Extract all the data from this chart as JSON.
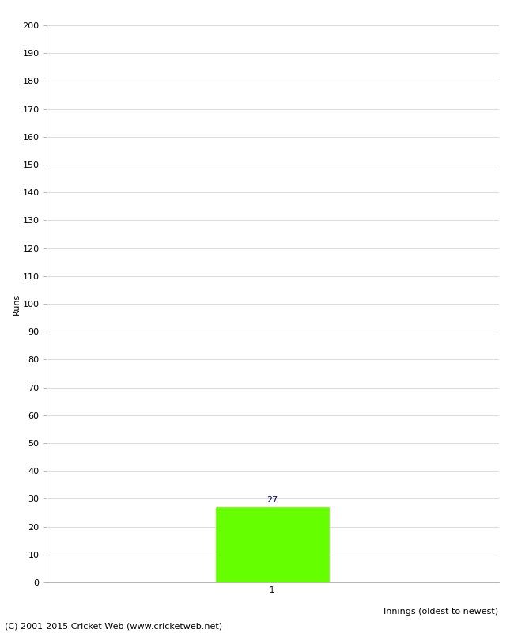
{
  "bar_values": [
    27
  ],
  "bar_positions": [
    1
  ],
  "bar_color": "#66ff00",
  "bar_edge_color": "#66ff00",
  "xlabel": "Innings (oldest to newest)",
  "ylabel": "Runs",
  "ylim": [
    0,
    200
  ],
  "ytick_step": 10,
  "xtick_labels": [
    "1"
  ],
  "background_color": "#ffffff",
  "grid_color": "#cccccc",
  "label_color": "#000080",
  "footer_text": "(C) 2001-2015 Cricket Web (www.cricketweb.net)",
  "footer_fontsize": 8,
  "axis_label_fontsize": 8,
  "tick_label_fontsize": 8,
  "value_label_fontsize": 8,
  "bar_width": 0.5,
  "xlim": [
    0,
    2
  ]
}
